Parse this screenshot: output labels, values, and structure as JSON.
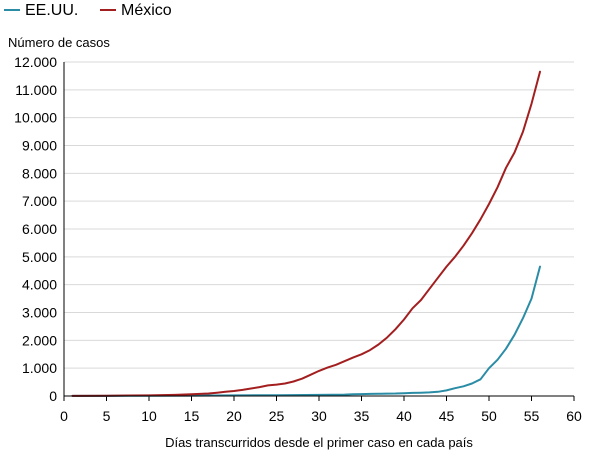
{
  "chart_data": {
    "type": "line",
    "title": "",
    "ylabel": "Número de casos",
    "xlabel": "Días transcurridos desde el primer caso en cada país",
    "xlim": [
      0,
      60
    ],
    "ylim": [
      0,
      12000
    ],
    "x_ticks": [
      0,
      5,
      10,
      15,
      20,
      25,
      30,
      35,
      40,
      45,
      50,
      55,
      60
    ],
    "x_tick_labels": [
      "0",
      "5",
      "10",
      "15",
      "20",
      "25",
      "30",
      "35",
      "40",
      "45",
      "50",
      "55",
      "60"
    ],
    "y_ticks": [
      0,
      1000,
      2000,
      3000,
      4000,
      5000,
      6000,
      7000,
      8000,
      9000,
      10000,
      11000,
      12000
    ],
    "y_tick_labels": [
      "0",
      "1.000",
      "2.000",
      "3.000",
      "4.000",
      "5.000",
      "6.000",
      "7.000",
      "8.000",
      "9.000",
      "10.000",
      "11.000",
      "12.000"
    ],
    "grid": "horizontal",
    "legend_position": "top-left",
    "series": [
      {
        "name": "EE.UU.",
        "color": "#2a8ca5",
        "x": [
          1,
          5,
          10,
          15,
          20,
          25,
          30,
          33,
          34,
          35,
          36,
          37,
          38,
          39,
          40,
          41,
          42,
          43,
          44,
          45,
          46,
          47,
          48,
          49,
          50,
          51,
          52,
          53,
          54,
          55,
          56
        ],
        "y": [
          5,
          5,
          10,
          15,
          20,
          30,
          40,
          50,
          60,
          70,
          75,
          80,
          85,
          90,
          100,
          110,
          120,
          130,
          150,
          200,
          280,
          350,
          450,
          600,
          1000,
          1300,
          1700,
          2200,
          2800,
          3500,
          4650
        ]
      },
      {
        "name": "México",
        "color": "#a31f1f",
        "x": [
          1,
          5,
          10,
          13,
          15,
          17,
          18,
          19,
          20,
          21,
          22,
          23,
          24,
          25,
          26,
          27,
          28,
          29,
          30,
          31,
          32,
          33,
          34,
          35,
          36,
          37,
          38,
          39,
          40,
          41,
          42,
          43,
          44,
          45,
          46,
          47,
          48,
          49,
          50,
          51,
          52,
          53,
          54,
          55,
          56
        ],
        "y": [
          5,
          10,
          20,
          40,
          60,
          90,
          120,
          150,
          180,
          220,
          270,
          320,
          380,
          410,
          450,
          520,
          620,
          760,
          900,
          1020,
          1120,
          1250,
          1380,
          1500,
          1650,
          1850,
          2100,
          2400,
          2750,
          3150,
          3450,
          3850,
          4250,
          4650,
          5000,
          5400,
          5850,
          6350,
          6900,
          7500,
          8200,
          8750,
          9500,
          10500,
          11650
        ]
      }
    ]
  }
}
